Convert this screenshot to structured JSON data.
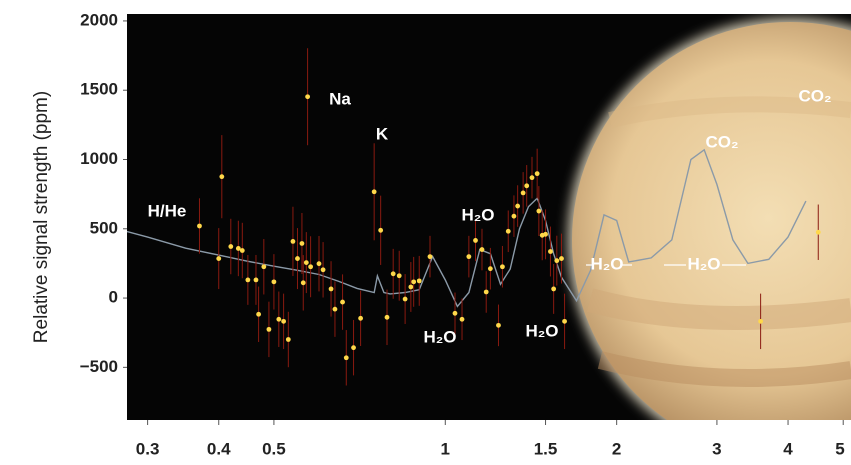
{
  "chart_data": {
    "type": "scatter",
    "y_label": "Relative signal strength (ppm)",
    "xscale": "log",
    "xlim": [
      0.276,
      5.16
    ],
    "ylim": [
      -880,
      2050
    ],
    "xticks": [
      0.3,
      0.4,
      0.5,
      1,
      1.5,
      2,
      3,
      4,
      5
    ],
    "yticks": [
      {
        "value": -500,
        "label": "−500"
      },
      0,
      500,
      1000,
      1500,
      2000
    ],
    "annotations": [
      "H/He",
      "Na",
      "K",
      "H₂O",
      "H₂O",
      "H₂O",
      "H₂O",
      "H₂O",
      "CO₂",
      "CO₂"
    ],
    "series": [
      {
        "type": "line",
        "color": "#8b9aa8",
        "x": [
          0.276,
          0.3,
          0.35,
          0.4,
          0.45,
          0.5,
          0.55,
          0.6,
          0.65,
          0.7,
          0.75,
          0.76,
          0.78,
          0.8,
          0.85,
          0.9,
          0.95,
          1.0,
          1.05,
          1.1,
          1.15,
          1.2,
          1.25,
          1.3,
          1.35,
          1.4,
          1.45,
          1.5,
          1.55,
          1.6,
          1.7,
          1.8,
          1.9,
          2.0,
          2.1,
          2.3,
          2.5,
          2.7,
          2.85,
          3.0,
          3.2,
          3.4,
          3.7,
          4.0,
          4.3
        ],
        "values": [
          480,
          440,
          360,
          310,
          265,
          230,
          200,
          170,
          120,
          70,
          40,
          160,
          40,
          30,
          40,
          60,
          300,
          130,
          -60,
          40,
          350,
          320,
          100,
          210,
          500,
          660,
          720,
          560,
          320,
          150,
          -20,
          200,
          600,
          560,
          260,
          290,
          420,
          1000,
          1070,
          820,
          420,
          250,
          280,
          440,
          700
        ]
      },
      {
        "type": "scatter",
        "color": "#ffd84a",
        "err_color": "#8a1a10",
        "x": [
          0.37,
          0.4,
          0.405,
          0.42,
          0.433,
          0.44,
          0.45,
          0.465,
          0.47,
          0.48,
          0.49,
          0.5,
          0.51,
          0.52,
          0.53,
          0.54,
          0.55,
          0.56,
          0.563,
          0.57,
          0.573,
          0.58,
          0.6,
          0.61,
          0.63,
          0.64,
          0.66,
          0.67,
          0.69,
          0.71,
          0.75,
          0.77,
          0.79,
          0.81,
          0.83,
          0.85,
          0.87,
          0.88,
          0.9,
          0.94,
          1.04,
          1.07,
          1.1,
          1.13,
          1.16,
          1.18,
          1.2,
          1.24,
          1.26,
          1.29,
          1.32,
          1.34,
          1.37,
          1.39,
          1.42,
          1.45,
          1.46,
          1.48,
          1.5,
          1.53,
          1.55,
          1.57,
          1.6,
          1.62,
          3.58,
          4.52
        ],
        "values": [
          520,
          285,
          876,
          372,
          358,
          343,
          131,
          131,
          -117,
          226,
          -226,
          117,
          -153,
          -168,
          -299,
          409,
          285,
          394,
          110,
          256,
          1453,
          226,
          248,
          204,
          66,
          -80,
          -29,
          -431,
          -358,
          -146,
          767,
          489,
          -139,
          175,
          161,
          -7,
          80,
          117,
          124,
          299,
          -110,
          -153,
          299,
          416,
          350,
          44,
          212,
          -197,
          226,
          482,
          591,
          664,
          759,
          810,
          869,
          898,
          628,
          453,
          460,
          336,
          66,
          270,
          285,
          -168,
          -168,
          475
        ],
        "errors": [
          200,
          220,
          300,
          200,
          200,
          200,
          180,
          180,
          200,
          200,
          200,
          200,
          200,
          200,
          200,
          250,
          220,
          220,
          200,
          220,
          350,
          220,
          200,
          200,
          200,
          200,
          200,
          200,
          200,
          200,
          350,
          250,
          200,
          180,
          180,
          180,
          180,
          180,
          180,
          150,
          150,
          150,
          150,
          150,
          150,
          150,
          150,
          150,
          150,
          150,
          150,
          150,
          150,
          150,
          150,
          180,
          180,
          180,
          180,
          180,
          180,
          180,
          180,
          200,
          200,
          200
        ]
      }
    ]
  }
}
